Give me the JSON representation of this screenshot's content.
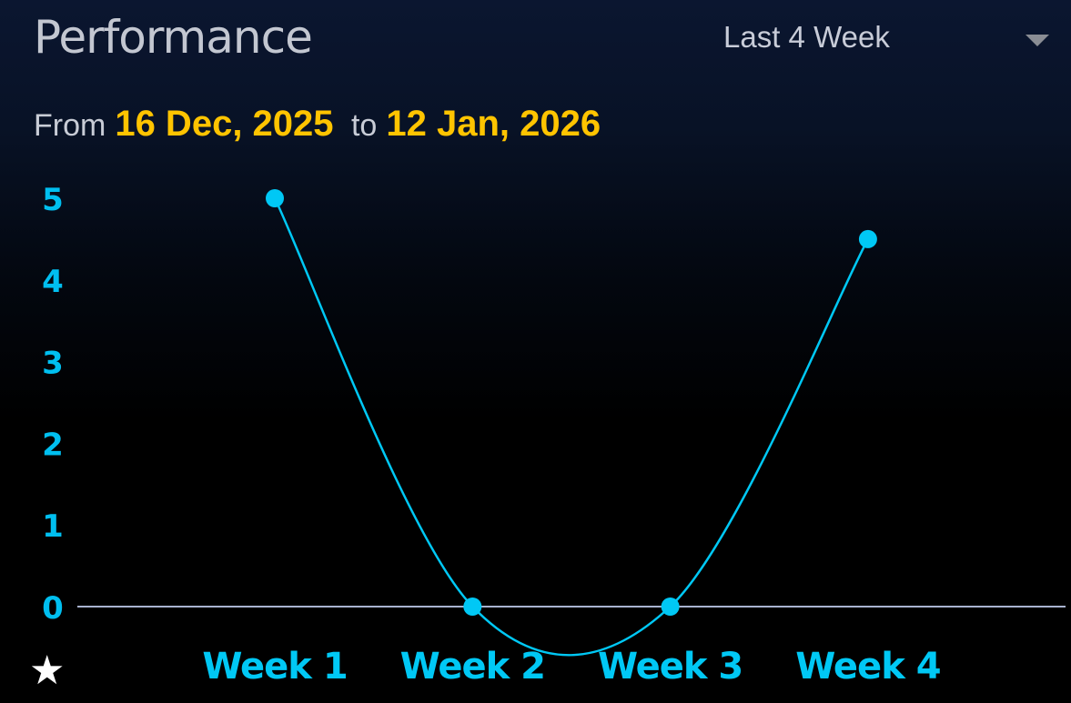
{
  "header": {
    "title": "Performance",
    "dropdown_value": "Last 4 Week",
    "dropdown_icon": "caret-down-icon"
  },
  "range": {
    "from_label": "From",
    "from_date": "16 Dec, 2025",
    "to_label": "to",
    "to_date": "12 Jan, 2026"
  },
  "footer": {
    "icon": "star-icon",
    "glyph": "★"
  },
  "colors": {
    "accent": "#00c8f5",
    "date": "#ffc400",
    "baseline": "#a9b3cf",
    "title": "#c3c7d1"
  },
  "chart_data": {
    "type": "line",
    "categories": [
      "Week 1",
      "Week 2",
      "Week 3",
      "Week 4"
    ],
    "values": [
      5,
      0,
      0,
      4.5
    ],
    "ylim": [
      0,
      5
    ],
    "yticks": [
      0,
      1,
      2,
      3,
      4,
      5
    ],
    "smooth": true,
    "grid": false,
    "color": "#00c8f5"
  }
}
